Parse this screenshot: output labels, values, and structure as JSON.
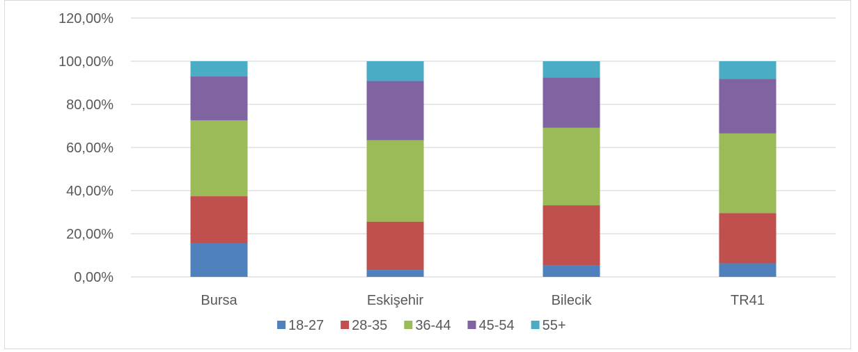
{
  "chart_data": {
    "type": "bar",
    "stacked": true,
    "categories": [
      "Bursa",
      "Eskişehir",
      "Bilecik",
      "TR41"
    ],
    "series": [
      {
        "name": "18-27",
        "color": "#4f81bd",
        "values": [
          15.5,
          3.2,
          5.3,
          6.3
        ]
      },
      {
        "name": "28-35",
        "color": "#c0504d",
        "values": [
          21.9,
          22.4,
          27.9,
          23.3
        ]
      },
      {
        "name": "36-44",
        "color": "#9bbb59",
        "values": [
          35.2,
          37.8,
          35.9,
          36.9
        ]
      },
      {
        "name": "45-54",
        "color": "#8064a2",
        "values": [
          20.3,
          27.4,
          23.3,
          25.3
        ]
      },
      {
        "name": "55+",
        "color": "#4bacc6",
        "values": [
          7.1,
          9.2,
          7.6,
          8.2
        ]
      }
    ],
    "yticks": [
      "0,00%",
      "20,00%",
      "40,00%",
      "60,00%",
      "80,00%",
      "100,00%",
      "120,00%"
    ],
    "ylim": [
      0,
      120
    ],
    "grid": true,
    "legend": "bottom",
    "title": "",
    "xlabel": "",
    "ylabel": ""
  }
}
